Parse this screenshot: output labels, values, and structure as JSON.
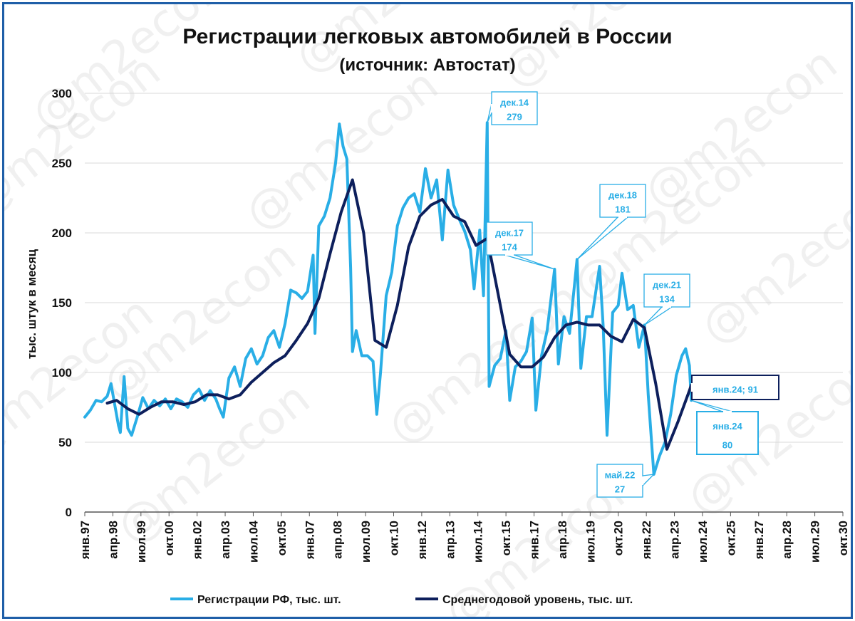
{
  "chart_data": {
    "type": "line",
    "title": "Регистрации легковых автомобилей в России",
    "subtitle": "(источник: Автостат)",
    "ylabel": "тыс. штук в месяц",
    "xlabel": "",
    "ylim": [
      0,
      300
    ],
    "yticks": [
      0,
      50,
      100,
      150,
      200,
      250,
      300
    ],
    "grid": true,
    "legend_position": "bottom",
    "x_tick_labels": [
      "янв.97",
      "апр.98",
      "июл.99",
      "окт.00",
      "янв.02",
      "апр.03",
      "июл.04",
      "окт.05",
      "янв.07",
      "апр.08",
      "июл.09",
      "окт.10",
      "янв.12",
      "апр.13",
      "июл.14",
      "окт.15",
      "янв.17",
      "апр.18",
      "июл.19",
      "окт.20",
      "янв.22",
      "апр.23",
      "июл.24",
      "окт.25",
      "янв.27",
      "апр.28",
      "июл.29",
      "окт.30"
    ],
    "x_start": "1997-01",
    "x_end": "2030-10",
    "series": [
      {
        "name": "Регистрации РФ, тыс. шт.",
        "color": "#29aee6",
        "points": [
          [
            "1997-01",
            68
          ],
          [
            "1997-04",
            73
          ],
          [
            "1997-07",
            80
          ],
          [
            "1997-10",
            79
          ],
          [
            "1998-01",
            83
          ],
          [
            "1998-03",
            92
          ],
          [
            "1998-05",
            77
          ],
          [
            "1998-07",
            62
          ],
          [
            "1998-08",
            57
          ],
          [
            "1998-10",
            97
          ],
          [
            "1998-12",
            60
          ],
          [
            "1999-02",
            55
          ],
          [
            "1999-05",
            68
          ],
          [
            "1999-08",
            82
          ],
          [
            "1999-11",
            74
          ],
          [
            "2000-02",
            80
          ],
          [
            "2000-05",
            76
          ],
          [
            "2000-08",
            81
          ],
          [
            "2000-11",
            74
          ],
          [
            "2001-02",
            81
          ],
          [
            "2001-05",
            79
          ],
          [
            "2001-08",
            75
          ],
          [
            "2001-11",
            84
          ],
          [
            "2002-02",
            88
          ],
          [
            "2002-05",
            80
          ],
          [
            "2002-08",
            87
          ],
          [
            "2002-11",
            81
          ],
          [
            "2003-01",
            74
          ],
          [
            "2003-03",
            68
          ],
          [
            "2003-06",
            96
          ],
          [
            "2003-09",
            104
          ],
          [
            "2003-12",
            90
          ],
          [
            "2004-03",
            110
          ],
          [
            "2004-06",
            117
          ],
          [
            "2004-09",
            106
          ],
          [
            "2004-12",
            112
          ],
          [
            "2005-03",
            125
          ],
          [
            "2005-06",
            130
          ],
          [
            "2005-09",
            118
          ],
          [
            "2005-12",
            135
          ],
          [
            "2006-03",
            159
          ],
          [
            "2006-06",
            157
          ],
          [
            "2006-09",
            153
          ],
          [
            "2006-12",
            158
          ],
          [
            "2007-03",
            184
          ],
          [
            "2007-04",
            128
          ],
          [
            "2007-06",
            205
          ],
          [
            "2007-09",
            212
          ],
          [
            "2007-12",
            225
          ],
          [
            "2008-03",
            250
          ],
          [
            "2008-05",
            278
          ],
          [
            "2008-07",
            262
          ],
          [
            "2008-09",
            253
          ],
          [
            "2008-11",
            175
          ],
          [
            "2008-12",
            115
          ],
          [
            "2009-02",
            130
          ],
          [
            "2009-05",
            112
          ],
          [
            "2009-08",
            112
          ],
          [
            "2009-11",
            108
          ],
          [
            "2010-01",
            70
          ],
          [
            "2010-03",
            100
          ],
          [
            "2010-06",
            155
          ],
          [
            "2010-09",
            172
          ],
          [
            "2010-12",
            205
          ],
          [
            "2011-03",
            218
          ],
          [
            "2011-06",
            225
          ],
          [
            "2011-09",
            228
          ],
          [
            "2011-12",
            215
          ],
          [
            "2012-03",
            246
          ],
          [
            "2012-06",
            225
          ],
          [
            "2012-09",
            238
          ],
          [
            "2012-12",
            195
          ],
          [
            "2013-03",
            245
          ],
          [
            "2013-06",
            220
          ],
          [
            "2013-09",
            210
          ],
          [
            "2013-12",
            201
          ],
          [
            "2014-03",
            188
          ],
          [
            "2014-05",
            160
          ],
          [
            "2014-08",
            202
          ],
          [
            "2014-10",
            155
          ],
          [
            "2014-12",
            279
          ],
          [
            "2015-01",
            90
          ],
          [
            "2015-04",
            105
          ],
          [
            "2015-07",
            110
          ],
          [
            "2015-10",
            130
          ],
          [
            "2015-12",
            80
          ],
          [
            "2016-03",
            104
          ],
          [
            "2016-06",
            108
          ],
          [
            "2016-09",
            115
          ],
          [
            "2016-12",
            139
          ],
          [
            "2017-02",
            73
          ],
          [
            "2017-05",
            112
          ],
          [
            "2017-08",
            130
          ],
          [
            "2017-12",
            174
          ],
          [
            "2018-02",
            106
          ],
          [
            "2018-05",
            140
          ],
          [
            "2018-08",
            128
          ],
          [
            "2018-12",
            181
          ],
          [
            "2019-02",
            103
          ],
          [
            "2019-05",
            140
          ],
          [
            "2019-08",
            140
          ],
          [
            "2019-12",
            176
          ],
          [
            "2020-02",
            132
          ],
          [
            "2020-04",
            55
          ],
          [
            "2020-07",
            143
          ],
          [
            "2020-10",
            148
          ],
          [
            "2020-12",
            171
          ],
          [
            "2021-03",
            145
          ],
          [
            "2021-06",
            148
          ],
          [
            "2021-09",
            118
          ],
          [
            "2021-12",
            134
          ],
          [
            "2022-02",
            84
          ],
          [
            "2022-05",
            27
          ],
          [
            "2022-08",
            40
          ],
          [
            "2022-11",
            50
          ],
          [
            "2023-02",
            70
          ],
          [
            "2023-05",
            98
          ],
          [
            "2023-08",
            112
          ],
          [
            "2023-10",
            117
          ],
          [
            "2023-12",
            105
          ],
          [
            "2024-01",
            80
          ]
        ]
      },
      {
        "name": "Среднегодовой уровень, тыс. шт.",
        "color": "#0d1f5c",
        "points": [
          [
            "1998-01",
            78
          ],
          [
            "1998-06",
            80
          ],
          [
            "1998-12",
            74
          ],
          [
            "1999-06",
            70
          ],
          [
            "1999-12",
            75
          ],
          [
            "2000-06",
            79
          ],
          [
            "2000-12",
            79
          ],
          [
            "2001-06",
            77
          ],
          [
            "2001-12",
            79
          ],
          [
            "2002-06",
            84
          ],
          [
            "2002-12",
            84
          ],
          [
            "2003-06",
            81
          ],
          [
            "2003-12",
            84
          ],
          [
            "2004-06",
            93
          ],
          [
            "2004-12",
            100
          ],
          [
            "2005-06",
            107
          ],
          [
            "2005-12",
            112
          ],
          [
            "2006-06",
            123
          ],
          [
            "2006-12",
            135
          ],
          [
            "2007-06",
            153
          ],
          [
            "2007-12",
            185
          ],
          [
            "2008-06",
            215
          ],
          [
            "2008-12",
            238
          ],
          [
            "2009-06",
            200
          ],
          [
            "2009-12",
            123
          ],
          [
            "2010-06",
            118
          ],
          [
            "2010-12",
            148
          ],
          [
            "2011-06",
            190
          ],
          [
            "2011-12",
            212
          ],
          [
            "2012-06",
            220
          ],
          [
            "2012-12",
            224
          ],
          [
            "2013-06",
            212
          ],
          [
            "2013-12",
            208
          ],
          [
            "2014-06",
            191
          ],
          [
            "2014-12",
            196
          ],
          [
            "2015-06",
            155
          ],
          [
            "2015-12",
            113
          ],
          [
            "2016-06",
            104
          ],
          [
            "2016-12",
            104
          ],
          [
            "2017-06",
            111
          ],
          [
            "2017-12",
            125
          ],
          [
            "2018-06",
            134
          ],
          [
            "2018-12",
            136
          ],
          [
            "2019-06",
            134
          ],
          [
            "2019-12",
            134
          ],
          [
            "2020-06",
            126
          ],
          [
            "2020-12",
            122
          ],
          [
            "2021-06",
            138
          ],
          [
            "2021-12",
            132
          ],
          [
            "2022-06",
            92
          ],
          [
            "2022-12",
            45
          ],
          [
            "2023-06",
            65
          ],
          [
            "2023-12",
            87
          ],
          [
            "2024-01",
            91
          ]
        ]
      }
    ],
    "annotations": [
      {
        "label": "дек.14",
        "value": "279",
        "x": "2014-12",
        "y": 279
      },
      {
        "label": "дек.17",
        "value": "174",
        "x": "2017-12",
        "y": 174
      },
      {
        "label": "дек.18",
        "value": "181",
        "x": "2018-12",
        "y": 181
      },
      {
        "label": "дек.21",
        "value": "134",
        "x": "2021-12",
        "y": 134
      },
      {
        "label": "май.22",
        "value": "27",
        "x": "2022-05",
        "y": 27
      },
      {
        "label": "янв.24",
        "value": "80",
        "x": "2024-01",
        "y": 80
      },
      {
        "label": "янв.24; 91",
        "x": "2024-01",
        "y": 91
      }
    ],
    "watermark": "@m2econ"
  }
}
